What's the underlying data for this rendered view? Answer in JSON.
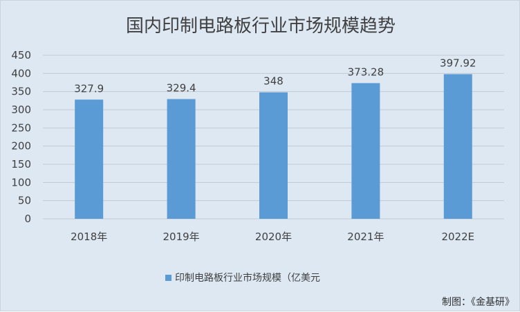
{
  "chart_data": {
    "type": "bar",
    "title": "国内印制电路板行业市场规模趋势",
    "categories": [
      "2018年",
      "2019年",
      "2020年",
      "2021年",
      "2022E"
    ],
    "series": [
      {
        "name": "印制电路板行业市场规模（亿美元",
        "values": [
          327.9,
          329.4,
          348,
          373.28,
          397.92
        ],
        "labels": [
          "327.9",
          "329.4",
          "348",
          "373.28",
          "397.92"
        ]
      }
    ],
    "ylim": [
      0,
      450
    ],
    "yticks": [
      0,
      50,
      100,
      150,
      200,
      250,
      300,
      350,
      400,
      450
    ],
    "grid": true,
    "legend": "bottom-center",
    "colors": {
      "bar": "#5b9bd5",
      "background": "#dde8f3"
    }
  },
  "credit": "制图：《金基研》"
}
